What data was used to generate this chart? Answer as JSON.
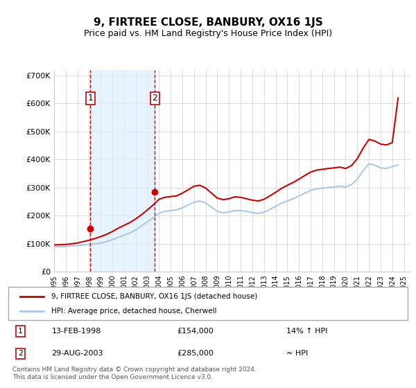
{
  "title": "9, FIRTREE CLOSE, BANBURY, OX16 1JS",
  "subtitle": "Price paid vs. HM Land Registry's House Price Index (HPI)",
  "sale1_date": "13-FEB-1998",
  "sale1_price": 154000,
  "sale1_hpi": "14% ↑ HPI",
  "sale1_label": "1",
  "sale1_x": 1998.11,
  "sale2_date": "29-AUG-2003",
  "sale2_price": 285000,
  "sale2_label": "2",
  "sale2_x": 2003.65,
  "sale2_hpi": "≈ HPI",
  "legend_property": "9, FIRTREE CLOSE, BANBURY, OX16 1JS (detached house)",
  "legend_hpi": "HPI: Average price, detached house, Cherwell",
  "footnote": "Contains HM Land Registry data © Crown copyright and database right 2024.\nThis data is licensed under the Open Government Licence v3.0.",
  "property_color": "#cc0000",
  "hpi_color": "#aac8e8",
  "shade_color": "#ddeeff",
  "ylim_min": 0,
  "ylim_max": 720000,
  "xlim_min": 1995,
  "xlim_max": 2025.5,
  "yticks": [
    0,
    100000,
    200000,
    300000,
    400000,
    500000,
    600000,
    700000
  ],
  "ytick_labels": [
    "£0",
    "£100K",
    "£200K",
    "£300K",
    "£400K",
    "£500K",
    "£600K",
    "£700K"
  ],
  "hpi_years": [
    1995,
    1995.5,
    1996,
    1996.5,
    1997,
    1997.5,
    1998,
    1998.5,
    1999,
    1999.5,
    2000,
    2000.5,
    2001,
    2001.5,
    2002,
    2002.5,
    2003,
    2003.5,
    2004,
    2004.5,
    2005,
    2005.5,
    2006,
    2006.5,
    2007,
    2007.5,
    2008,
    2008.5,
    2009,
    2009.5,
    2010,
    2010.5,
    2011,
    2011.5,
    2012,
    2012.5,
    2013,
    2013.5,
    2014,
    2014.5,
    2015,
    2015.5,
    2016,
    2016.5,
    2017,
    2017.5,
    2018,
    2018.5,
    2019,
    2019.5,
    2020,
    2020.5,
    2021,
    2021.5,
    2022,
    2022.5,
    2023,
    2023.5,
    2024,
    2024.5
  ],
  "hpi_values": [
    88000,
    89000,
    90000,
    91500,
    93000,
    95000,
    97000,
    99000,
    102000,
    107000,
    114000,
    122000,
    130000,
    138000,
    148000,
    163000,
    178000,
    192000,
    208000,
    215000,
    218000,
    220000,
    228000,
    238000,
    248000,
    252000,
    245000,
    230000,
    215000,
    210000,
    213000,
    218000,
    218000,
    215000,
    210000,
    208000,
    212000,
    222000,
    233000,
    244000,
    252000,
    260000,
    270000,
    280000,
    290000,
    295000,
    298000,
    300000,
    302000,
    305000,
    302000,
    310000,
    330000,
    360000,
    385000,
    380000,
    370000,
    368000,
    375000,
    380000
  ],
  "property_years": [
    1995,
    1995.5,
    1996,
    1996.5,
    1997,
    1997.5,
    1998,
    1998.5,
    1999,
    1999.5,
    2000,
    2000.5,
    2001,
    2001.5,
    2002,
    2002.5,
    2003,
    2003.5,
    2004,
    2004.5,
    2005,
    2005.5,
    2006,
    2006.5,
    2007,
    2007.5,
    2008,
    2008.5,
    2009,
    2009.5,
    2010,
    2010.5,
    2011,
    2011.5,
    2012,
    2012.5,
    2013,
    2013.5,
    2014,
    2014.5,
    2015,
    2015.5,
    2016,
    2016.5,
    2017,
    2017.5,
    2018,
    2018.5,
    2019,
    2019.5,
    2020,
    2020.5,
    2021,
    2021.5,
    2022,
    2022.5,
    2023,
    2023.5,
    2024,
    2024.5
  ],
  "property_values": [
    95000,
    96000,
    97000,
    99000,
    102000,
    107000,
    112000,
    118000,
    125000,
    133000,
    143000,
    155000,
    165000,
    175000,
    188000,
    203000,
    220000,
    238000,
    258000,
    265000,
    268000,
    270000,
    280000,
    292000,
    305000,
    308000,
    298000,
    280000,
    262000,
    257000,
    260000,
    267000,
    265000,
    260000,
    255000,
    252000,
    258000,
    270000,
    283000,
    297000,
    308000,
    318000,
    330000,
    343000,
    355000,
    362000,
    365000,
    368000,
    370000,
    373000,
    368000,
    378000,
    403000,
    440000,
    472000,
    466000,
    455000,
    452000,
    460000,
    620000
  ]
}
